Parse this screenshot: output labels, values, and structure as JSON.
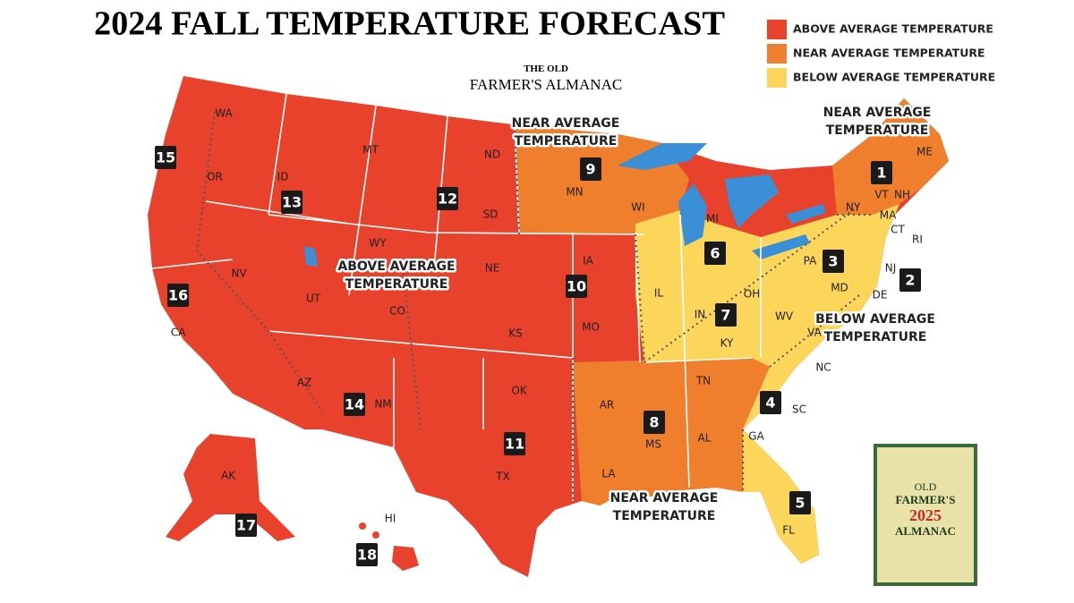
{
  "title": "2024 FALL TEMPERATURE FORECAST",
  "logo": {
    "line1": "THE OLD",
    "line2": "FARMER'S ALMANAC"
  },
  "legend": [
    {
      "label": "ABOVE AVERAGE TEMPERATURE",
      "color": "#e8412c"
    },
    {
      "label": "NEAR AVERAGE TEMPERATURE",
      "color": "#f07f2d"
    },
    {
      "label": "BELOW AVERAGE TEMPERATURE",
      "color": "#fbd65a"
    }
  ],
  "annotations": [
    {
      "lines": [
        "NEAR AVERAGE",
        "TEMPERATURE"
      ]
    },
    {
      "lines": [
        "NEAR AVERAGE",
        "TEMPERATURE"
      ]
    },
    {
      "lines": [
        "ABOVE AVERAGE",
        "TEMPERATURE"
      ]
    },
    {
      "lines": [
        "BELOW AVERAGE",
        "TEMPERATURE"
      ]
    },
    {
      "lines": [
        "NEAR AVERAGE",
        "TEMPERATURE"
      ]
    }
  ],
  "states": [
    "WA",
    "OR",
    "ID",
    "MT",
    "ND",
    "SD",
    "WY",
    "NE",
    "UT",
    "NV",
    "CA",
    "CO",
    "KS",
    "OK",
    "TX",
    "NM",
    "AZ",
    "MN",
    "WI",
    "IA",
    "MO",
    "AR",
    "LA",
    "MS",
    "AL",
    "TN",
    "IL",
    "IN",
    "OH",
    "MI",
    "KY",
    "WV",
    "VA",
    "NC",
    "SC",
    "GA",
    "FL",
    "PA",
    "NY",
    "VT",
    "NH",
    "ME",
    "MA",
    "CT",
    "RI",
    "NJ",
    "DE",
    "MD",
    "AK",
    "HI"
  ],
  "regions": [
    1,
    2,
    3,
    4,
    5,
    6,
    7,
    8,
    9,
    10,
    11,
    12,
    13,
    14,
    15,
    16,
    17,
    18
  ],
  "book_cover": {
    "line1": "OLD",
    "line2": "FARMER'S",
    "year": "2025",
    "line4": "ALMANAC"
  }
}
